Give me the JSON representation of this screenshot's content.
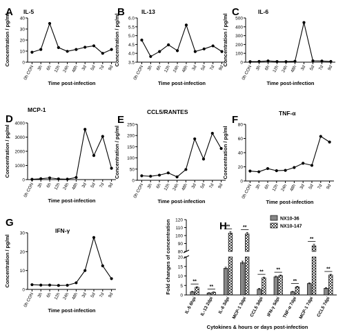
{
  "figure": {
    "xlabel": "Time post-infection",
    "ylabel": "Concentration / pg/ml"
  },
  "time_labels": [
    "0h CON",
    "3h",
    "6h",
    "12h",
    "24h",
    "48h",
    "3d",
    "5d",
    "7d",
    "9d"
  ],
  "chart_data": [
    {
      "type": "line",
      "letter": "A",
      "title": "IL-5",
      "categories": [
        "0h CON",
        "3h",
        "6h",
        "12h",
        "24h",
        "48h",
        "3d",
        "5d",
        "7d",
        "9d"
      ],
      "values": [
        9,
        11.5,
        35,
        13.2,
        9.8,
        11.5,
        13.5,
        14.8,
        8,
        11.5
      ],
      "ylim": [
        0,
        40
      ],
      "yticks": [
        "0",
        "10",
        "20",
        "30",
        "40"
      ]
    },
    {
      "type": "line",
      "letter": "B",
      "title": "IL-13",
      "categories": [
        "0h CON",
        "3h",
        "6h",
        "12h",
        "24h",
        "48h",
        "3d",
        "5d",
        "7d",
        "9d"
      ],
      "values": [
        4.75,
        3.82,
        4.1,
        4.48,
        4.15,
        5.6,
        4.1,
        4.25,
        4.42,
        4.1
      ],
      "ylim": [
        3.5,
        6.0
      ],
      "yticks": [
        "3.5",
        "4.0",
        "4.5",
        "5.0",
        "5.5",
        "6.0"
      ]
    },
    {
      "type": "line",
      "letter": "C",
      "title": "IL-6",
      "categories": [
        "0h CON",
        "3h",
        "6h",
        "12h",
        "24h",
        "48h",
        "3d",
        "5d",
        "7d",
        "9d"
      ],
      "values": [
        6,
        8,
        14,
        7,
        6,
        10,
        448,
        15,
        13,
        8
      ],
      "ylim": [
        0,
        500
      ],
      "yticks": [
        "0",
        "100",
        "200",
        "300",
        "400",
        "500"
      ]
    },
    {
      "type": "line",
      "letter": "D",
      "title": "MCP-1",
      "categories": [
        "0h CON",
        "3h",
        "6h",
        "12h",
        "24h",
        "48h",
        "3d",
        "5d",
        "7d",
        "9d"
      ],
      "values": [
        20,
        60,
        120,
        50,
        30,
        150,
        3550,
        1700,
        3050,
        800
      ],
      "ylim": [
        0,
        4000
      ],
      "yticks": [
        "0",
        "1000",
        "2000",
        "3000",
        "4000"
      ]
    },
    {
      "type": "line",
      "letter": "E",
      "title": "CCL5/RANTES",
      "categories": [
        "0h CON",
        "3h",
        "6h",
        "12h",
        "24h",
        "48h",
        "3d",
        "5d",
        "7d",
        "9d"
      ],
      "values": [
        20,
        18,
        23,
        33,
        15,
        48,
        185,
        95,
        210,
        142
      ],
      "ylim": [
        0,
        250
      ],
      "yticks": [
        "0",
        "50",
        "100",
        "150",
        "200",
        "250"
      ]
    },
    {
      "type": "line",
      "letter": "F",
      "title": "TNF-α",
      "categories": [
        "0h CON",
        "3h",
        "6h",
        "12h",
        "24h",
        "48h",
        "3d",
        "5d",
        "7d",
        "9d"
      ],
      "values": [
        14,
        13,
        17.5,
        14.5,
        15,
        19,
        25,
        22,
        63,
        55
      ],
      "ylim": [
        0,
        80
      ],
      "yticks": [
        "0",
        "20",
        "40",
        "60",
        "80"
      ]
    },
    {
      "type": "line",
      "letter": "G",
      "title": "IFN-γ",
      "categories": [
        "0h CON",
        "3h",
        "6h",
        "12h",
        "24h",
        "48h",
        "3d",
        "5d",
        "7d",
        "9d"
      ],
      "values": [
        2.5,
        2.3,
        2.3,
        2.1,
        2.2,
        3.5,
        10,
        27.5,
        12.5,
        5.7
      ],
      "ylim": [
        0,
        30
      ],
      "yticks": [
        "0",
        "10",
        "20",
        "30"
      ]
    },
    {
      "type": "bar",
      "letter": "H",
      "xlabel": "Cytokines & hours or days post-infection",
      "ylabel": "Fold changes of concentration",
      "categories": [
        "IL-5 6hpi",
        "IL-13 2dpi",
        "IL-6 3dpi",
        "MCP-1 3dpi",
        "CCL5 3dpi",
        "IFN-γ 5dpi",
        "TNF-α 7dpi",
        "MCP-1 7dpi",
        "CCL5 7dpi"
      ],
      "series": [
        {
          "name": "NX10-36",
          "color": "#888888",
          "values": [
            1.6,
            1.0,
            14,
            17,
            3.0,
            9.5,
            1.6,
            6.0,
            3.5
          ],
          "errors": [
            0.3,
            0.2,
            0.6,
            0.8,
            0.5,
            0.4,
            0.3,
            0.4,
            0.4
          ]
        },
        {
          "name": "NX10-147",
          "color": "#dddddd",
          "values": [
            4.0,
            1.4,
            103,
            102,
            9.0,
            10.2,
            4.2,
            87,
            10.5
          ],
          "errors": [
            0.3,
            0.2,
            2.0,
            2.0,
            0.4,
            0.3,
            0.4,
            2.0,
            0.4
          ]
        }
      ],
      "significance": [
        "**",
        "**",
        "**",
        "**",
        "**",
        "**",
        "**",
        "**",
        "**"
      ],
      "y_axis": "broken",
      "ylim_lower": [
        0,
        20
      ],
      "ylim_upper": [
        80,
        120
      ],
      "yticks_lower": [
        "0",
        "5",
        "10",
        "15",
        "20"
      ],
      "yticks_upper": [
        "80",
        "90",
        "100",
        "110",
        "120"
      ],
      "legend_position": "top-right"
    }
  ]
}
